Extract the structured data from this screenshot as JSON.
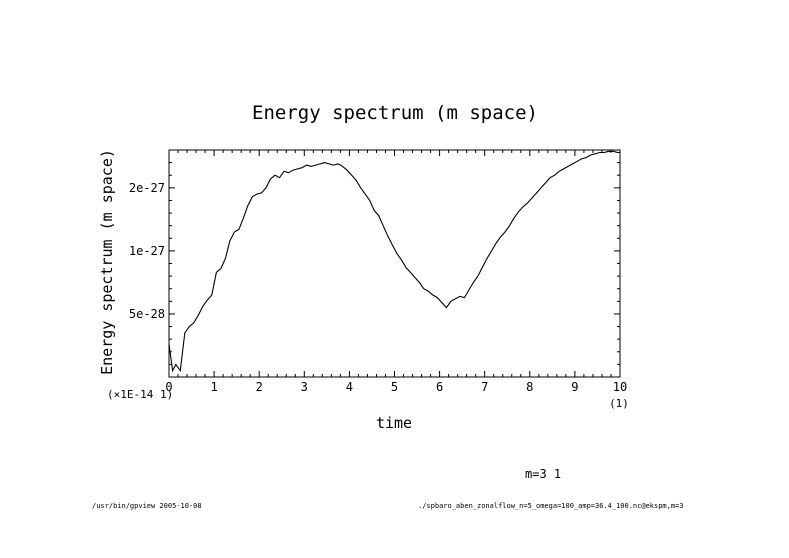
{
  "chart_data": {
    "type": "line",
    "title": "Energy spectrum (m space)",
    "xlabel": "time",
    "ylabel": "Energy spectrum (m space)",
    "x_multiplier_label": "(1)",
    "y_multiplier_label": "(×1E-14 1)",
    "xlim": [
      0,
      10
    ],
    "ylim": [
      0,
      1.8e-27
    ],
    "x_ticks": [
      0,
      1,
      2,
      3,
      4,
      5,
      6,
      7,
      8,
      9,
      10
    ],
    "x_tick_labels": [
      "0",
      "1",
      "2",
      "3",
      "4",
      "5",
      "6",
      "7",
      "8",
      "9",
      "10"
    ],
    "y_ticks": [
      5e-28,
      1e-27,
      1.5e-27
    ],
    "y_tick_labels": [
      "5e-28",
      "1e-27",
      "2e-27"
    ],
    "grid": false,
    "legend": "none",
    "series": [
      {
        "x": [
          0.0,
          0.08,
          0.15,
          0.25,
          0.35,
          0.45,
          0.55,
          0.65,
          0.75,
          0.85,
          0.95,
          1.05,
          1.15,
          1.25,
          1.35,
          1.45,
          1.55,
          1.65,
          1.75,
          1.85,
          1.95,
          2.05,
          2.15,
          2.25,
          2.35,
          2.45,
          2.55,
          2.65,
          2.75,
          2.85,
          2.95,
          3.05,
          3.15,
          3.25,
          3.35,
          3.45,
          3.55,
          3.65,
          3.75,
          3.85,
          3.95,
          4.05,
          4.15,
          4.25,
          4.35,
          4.45,
          4.55,
          4.65,
          4.75,
          4.85,
          4.95,
          5.05,
          5.15,
          5.25,
          5.35,
          5.45,
          5.55,
          5.65,
          5.75,
          5.85,
          5.95,
          6.05,
          6.15,
          6.25,
          6.35,
          6.45,
          6.55,
          6.65,
          6.75,
          6.85,
          6.95,
          7.05,
          7.15,
          7.25,
          7.35,
          7.45,
          7.55,
          7.65,
          7.75,
          7.85,
          7.95,
          8.05,
          8.15,
          8.25,
          8.35,
          8.45,
          8.55,
          8.65,
          8.75,
          8.85,
          8.95,
          9.05,
          9.15,
          9.25,
          9.35,
          9.45,
          9.55,
          9.65,
          9.75,
          9.85,
          9.95,
          10.0
        ],
        "y": [
          2.6e-28,
          5e-29,
          1e-28,
          5e-29,
          3.5e-28,
          4e-28,
          4.3e-28,
          4.9e-28,
          5.6e-28,
          6.1e-28,
          6.5e-28,
          8.3e-28,
          8.6e-28,
          9.4e-28,
          1.08e-27,
          1.15e-27,
          1.17e-27,
          1.26e-27,
          1.36e-27,
          1.43e-27,
          1.45e-27,
          1.46e-27,
          1.5e-27,
          1.57e-27,
          1.6e-27,
          1.58e-27,
          1.63e-27,
          1.62e-27,
          1.64e-27,
          1.65e-27,
          1.66e-27,
          1.68e-27,
          1.67e-27,
          1.68e-27,
          1.69e-27,
          1.7e-27,
          1.69e-27,
          1.68e-27,
          1.69e-27,
          1.67e-27,
          1.64e-27,
          1.6e-27,
          1.56e-27,
          1.5e-27,
          1.45e-27,
          1.4e-27,
          1.32e-27,
          1.28e-27,
          1.2e-27,
          1.12e-27,
          1.05e-27,
          9.8e-28,
          9.3e-28,
          8.7e-28,
          8.3e-28,
          7.9e-28,
          7.5e-28,
          7e-28,
          6.8e-28,
          6.5e-28,
          6.3e-28,
          5.9e-28,
          5.5e-28,
          6e-28,
          6.2e-28,
          6.4e-28,
          6.3e-28,
          6.9e-28,
          7.5e-28,
          8e-28,
          8.7e-28,
          9.4e-28,
          1e-27,
          1.06e-27,
          1.11e-27,
          1.15e-27,
          1.2e-27,
          1.26e-27,
          1.31e-27,
          1.35e-27,
          1.38e-27,
          1.42e-27,
          1.46e-27,
          1.5e-27,
          1.54e-27,
          1.58e-27,
          1.6e-27,
          1.63e-27,
          1.65e-27,
          1.67e-27,
          1.69e-27,
          1.71e-27,
          1.73e-27,
          1.74e-27,
          1.76e-27,
          1.77e-27,
          1.78e-27,
          1.78e-27,
          1.79e-27,
          1.79e-27,
          1.78e-27,
          1.78e-27
        ]
      }
    ]
  },
  "annotation": "m=3 1",
  "footer": {
    "left": "/usr/bin/gpview  2005-10-08",
    "right": "./spbaro_aben_zonalflow_n=5_omega=100_amp=36.4_100.nc@ekspm,m=3"
  }
}
